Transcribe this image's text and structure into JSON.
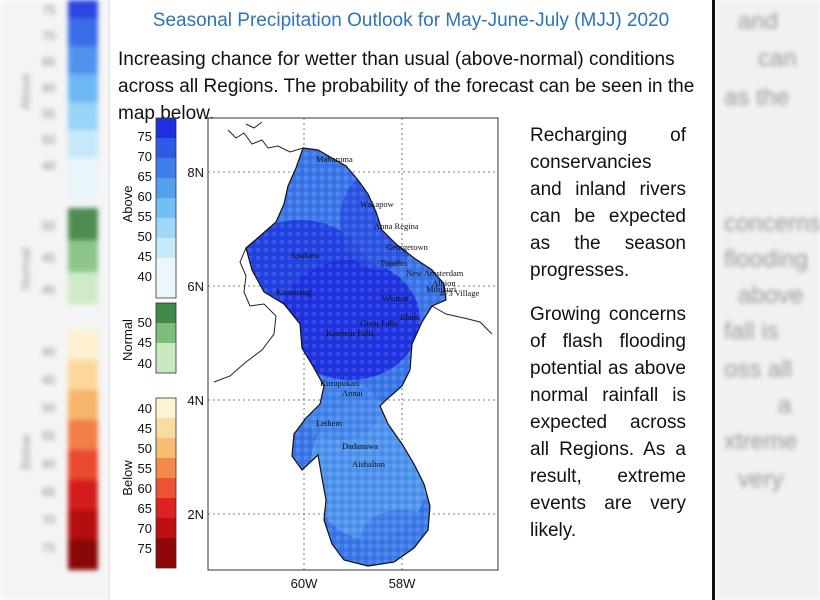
{
  "title": "Seasonal Precipitation Outlook for May-June-July (MJJ) 2020",
  "intro": "Increasing chance for wetter than usual (above-normal) conditions across all Regions. The probability of the forecast can be seen in the map below.",
  "side_text": [
    "Recharging of conservancies and inland rivers can be expected as the season progresses.",
    "Growing concerns of flash flooding potential as above normal rainfall is expected across all Regions. As a result, extreme events are very likely."
  ],
  "legend": {
    "above": {
      "label": "Above",
      "ticks": [
        "75",
        "70",
        "65",
        "60",
        "55",
        "50",
        "45",
        "40"
      ],
      "colors": [
        "#1e2fe0",
        "#2f5ae6",
        "#3f7de9",
        "#52a0ee",
        "#71bff3",
        "#9dd8f8",
        "#c7eafb",
        "#ebf7fd"
      ]
    },
    "normal": {
      "label": "Normal",
      "ticks": [
        "50",
        "45",
        "40"
      ],
      "colors": [
        "#3f8a48",
        "#7cbd7a",
        "#c9e8c2"
      ]
    },
    "below": {
      "label": "Below",
      "ticks": [
        "40",
        "45",
        "50",
        "55",
        "60",
        "65",
        "70",
        "75"
      ],
      "colors": [
        "#fdf3d4",
        "#fbdca0",
        "#f8bd72",
        "#f28a4d",
        "#ed5433",
        "#dd2020",
        "#be1010",
        "#8e0808"
      ]
    }
  },
  "map": {
    "lat_labels": [
      "8N",
      "6N",
      "4N",
      "2N"
    ],
    "lon_labels": [
      "60W",
      "58W"
    ],
    "places": [
      "Mabaruma",
      "Wakapow",
      "Anna Regina",
      "Georgetown",
      "Timehri",
      "New Amsterdam",
      "Albion",
      "Mibikuri",
      "#73 Village",
      "Apakara",
      "Kamarang",
      "Wismar",
      "Ebini",
      "Great Falls",
      "Kaieteur Falls",
      "Kurupukari",
      "Annai",
      "Lethem",
      "Dadanawa",
      "Aishalton"
    ]
  },
  "background_ghost_text": [
    "and",
    "can",
    "as the",
    "concerns",
    "flooding",
    "above",
    "fall is",
    "oss all",
    "a",
    "xtreme",
    "very"
  ]
}
